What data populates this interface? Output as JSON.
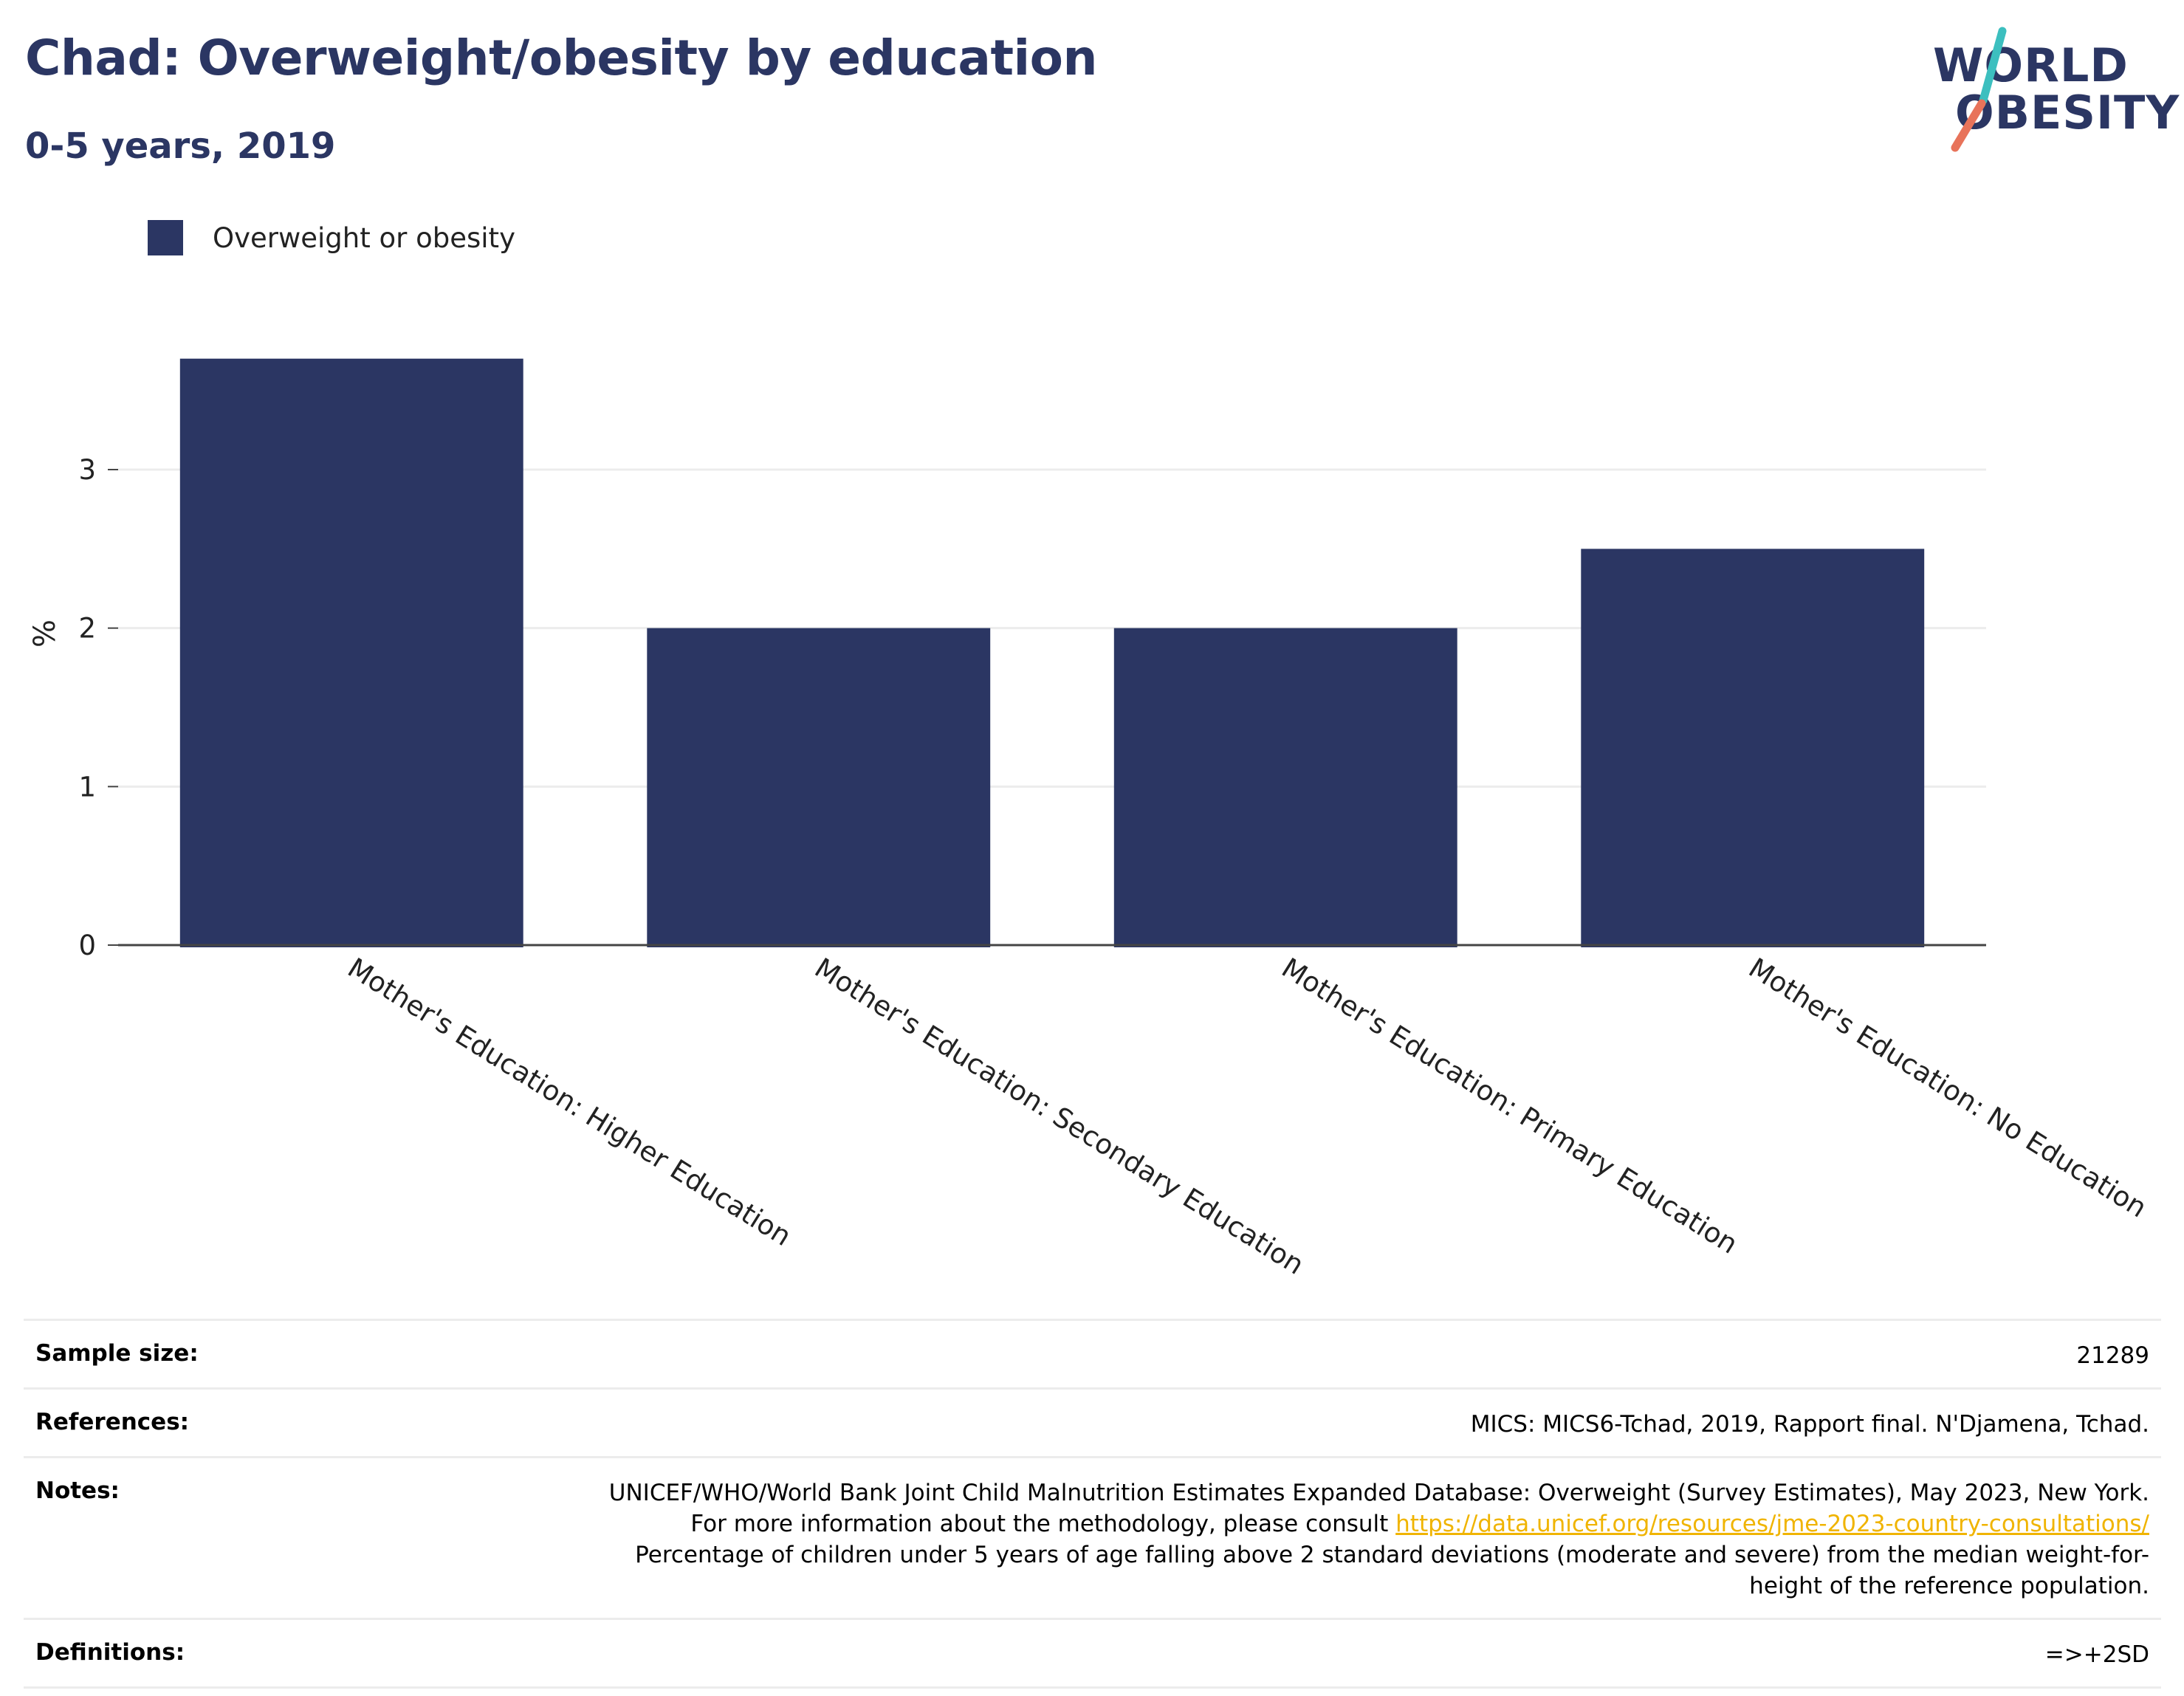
{
  "header": {
    "title": "Chad: Overweight/obesity by education",
    "subtitle": "0-5 years, 2019"
  },
  "logo": {
    "line1": "WORLD",
    "line2": "OBESITY",
    "colors": {
      "text": "#2b3663",
      "slash_top": "#3cbfbf",
      "slash_bottom": "#e8735a"
    }
  },
  "colors": {
    "bar": "#2b3663",
    "grid": "#ececec",
    "axis": "#444444",
    "link": "#f0b400"
  },
  "chart_data": {
    "type": "bar",
    "title": "Chad: Overweight/obesity by education",
    "subtitle": "0-5 years, 2019",
    "categories": [
      "Mother's Education: Higher Education",
      "Mother's Education: Secondary Education",
      "Mother's Education: Primary Education",
      "Mother's Education: No Education"
    ],
    "series": [
      {
        "name": "Overweight or obesity",
        "values": [
          3.7,
          2.0,
          2.0,
          2.5
        ]
      }
    ],
    "xlabel": "",
    "ylabel": "%",
    "ylim": [
      0,
      3.9
    ],
    "yticks": [
      0,
      1,
      2,
      3
    ],
    "grid": true,
    "legend": "top-left"
  },
  "meta": {
    "sample_size_label": "Sample size:",
    "sample_size": "21289",
    "references_label": "References:",
    "references": "MICS: MICS6-Tchad, 2019, Rapport final. N'Djamena, Tchad.",
    "notes_label": "Notes:",
    "notes_part1": "UNICEF/WHO/World Bank Joint Child Malnutrition Estimates Expanded Database: Overweight (Survey Estimates), May 2023, New York. For more information about the methodology, please consult ",
    "notes_link": "https://data.unicef.org/resources/jme-2023-country-consultations/",
    "notes_part2": " Percentage of children under 5 years of age falling above 2 standard deviations (moderate and severe) from the median weight-for-height of the reference population.",
    "definitions_label": "Definitions:",
    "definitions": "=>+2SD"
  }
}
